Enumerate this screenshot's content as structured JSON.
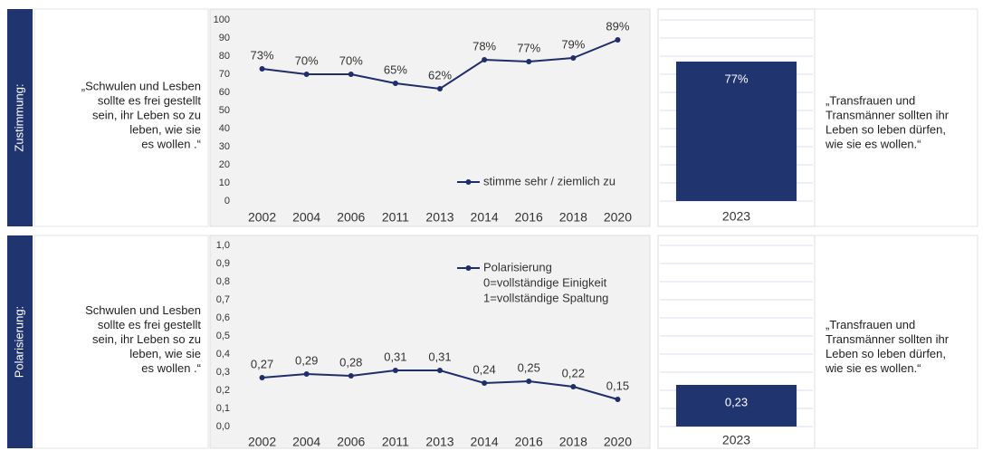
{
  "rows": [
    {
      "label": "Zustimmung:",
      "quote_left": [
        "„Schwulen und Lesben",
        "sollte es frei gestellt",
        "sein, ihr Leben so zu",
        "leben, wie sie",
        "es wollen .“"
      ],
      "quote_right": [
        "„Transfrauen und",
        "Transmänner sollten ihr",
        "Leben so leben dürfen,",
        "wie sie es wollen.“"
      ]
    },
    {
      "label": "Polarisierung:",
      "quote_left": [
        "Schwulen und Lesben",
        "sollte es frei gestellt",
        "sein, ihr Leben so zu",
        "leben, wie sie",
        "es wollen .“"
      ],
      "quote_right": [
        "„Transfrauen und",
        "Transmänner sollten ihr",
        "Leben so leben dürfen,",
        "wie sie es wollen.“"
      ]
    }
  ],
  "chart_data": [
    {
      "type": "line",
      "categories": [
        "2002",
        "2004",
        "2006",
        "2011",
        "2013",
        "2014",
        "2016",
        "2018",
        "2020"
      ],
      "series": [
        {
          "name": "stimme sehr / ziemlich zu",
          "color": "#1f2d6b",
          "values": [
            73,
            70,
            70,
            65,
            62,
            78,
            77,
            79,
            89
          ],
          "value_labels": [
            "73%",
            "70%",
            "70%",
            "65%",
            "62%",
            "78%",
            "77%",
            "79%",
            "89%"
          ]
        }
      ],
      "ylim": [
        0,
        100
      ],
      "yticks": [
        0,
        10,
        20,
        30,
        40,
        50,
        60,
        70,
        80,
        90,
        100
      ],
      "grid": false,
      "legend": "bottom-right"
    },
    {
      "type": "bar",
      "categories": [
        "2023"
      ],
      "values": [
        77
      ],
      "value_labels": [
        "77%"
      ],
      "color": "#203470",
      "ylim": [
        0,
        100
      ],
      "yticks": [
        0,
        10,
        20,
        30,
        40,
        50,
        60,
        70,
        80,
        90,
        100
      ],
      "grid": true
    },
    {
      "type": "line",
      "categories": [
        "2002",
        "2004",
        "2006",
        "2011",
        "2013",
        "2014",
        "2016",
        "2018",
        "2020"
      ],
      "series": [
        {
          "name": "Polarisierung",
          "color": "#1f2d6b",
          "values": [
            0.27,
            0.29,
            0.28,
            0.31,
            0.31,
            0.24,
            0.25,
            0.22,
            0.15
          ],
          "value_labels": [
            "0,27",
            "0,29",
            "0,28",
            "0,31",
            "0,31",
            "0,24",
            "0,25",
            "0,22",
            "0,15"
          ]
        }
      ],
      "annotations": [
        "0=vollständige Einigkeit",
        "1=vollständige Spaltung"
      ],
      "ylim": [
        0,
        1
      ],
      "yticks": [
        {
          "value": 0,
          "label": "0,0"
        },
        {
          "value": 0.1,
          "label": "0,1"
        },
        {
          "value": 0.2,
          "label": "0,2"
        },
        {
          "value": 0.3,
          "label": "0,3"
        },
        {
          "value": 0.4,
          "label": "0,4"
        },
        {
          "value": 0.5,
          "label": "0,5"
        },
        {
          "value": 0.6,
          "label": "0,6"
        },
        {
          "value": 0.7,
          "label": "0,7"
        },
        {
          "value": 0.8,
          "label": "0,8"
        },
        {
          "value": 0.9,
          "label": "0,9"
        },
        {
          "value": 1,
          "label": "1,0"
        }
      ],
      "grid": false,
      "legend": "top-right"
    },
    {
      "type": "bar",
      "categories": [
        "2023"
      ],
      "values": [
        0.23
      ],
      "value_labels": [
        "0,23"
      ],
      "color": "#203470",
      "ylim": [
        0,
        1
      ],
      "yticks": [
        0,
        0.1,
        0.2,
        0.3,
        0.4,
        0.5,
        0.6,
        0.7,
        0.8,
        0.9,
        1
      ],
      "grid": true
    }
  ]
}
